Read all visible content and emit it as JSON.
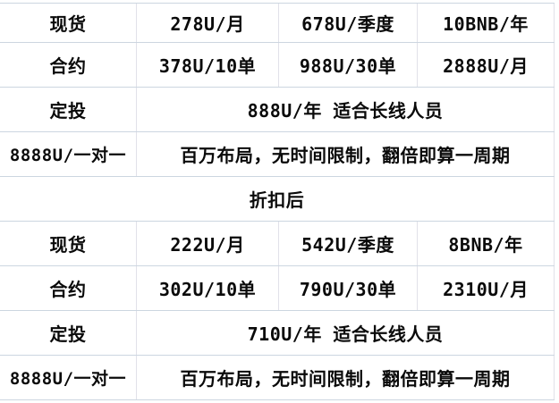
{
  "table": {
    "rows": [
      {
        "cells": [
          "现货",
          "278U/月",
          "678U/季度",
          "10BNB/年"
        ]
      },
      {
        "cells": [
          "合约",
          "378U/10单",
          "988U/30单",
          "2888U/月"
        ]
      },
      {
        "cells": [
          "定投",
          "888U/年 适合长线人员"
        ]
      },
      {
        "cells": [
          "8888U/一对一",
          "百万布局，无时间限制，翻倍即算一周期"
        ]
      },
      {
        "cells": [
          "折扣后"
        ]
      },
      {
        "cells": [
          "现货",
          "222U/月",
          "542U/季度",
          "8BNB/年"
        ]
      },
      {
        "cells": [
          "合约",
          "302U/10单",
          "790U/30单",
          "2310U/月"
        ]
      },
      {
        "cells": [
          "定投",
          "710U/年 适合长线人员"
        ]
      },
      {
        "cells": [
          "8888U/一对一",
          "百万布局，无时间限制，翻倍即算一周期"
        ]
      }
    ]
  },
  "colors": {
    "background": "#ffffff",
    "text": "#0a0a0a",
    "border_horizontal": "#ccd6e0",
    "border_vertical": "#e1e1e9"
  }
}
